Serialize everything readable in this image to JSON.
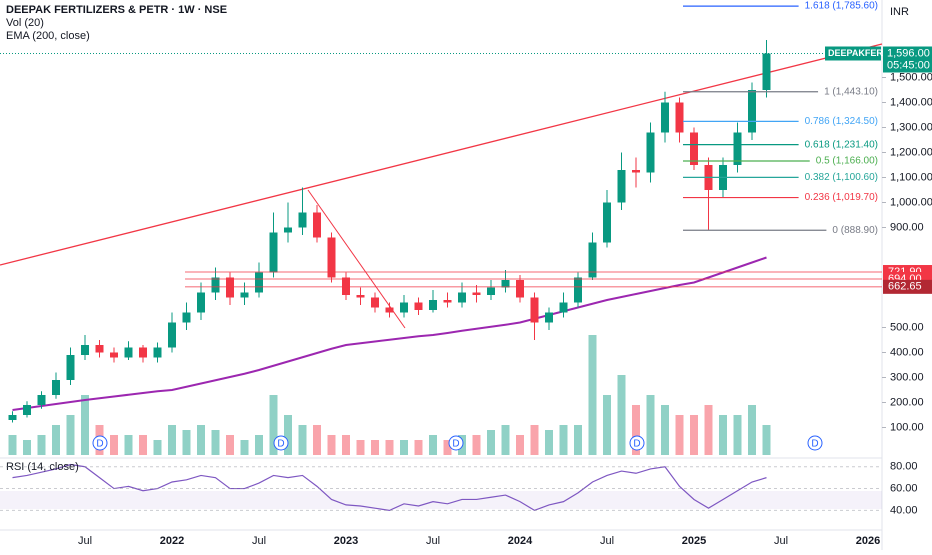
{
  "chart_data": {
    "type": "candlestick",
    "title": "DEEPAK FERTILIZERS & PETR · 1W · NSE",
    "indicators": [
      "Vol (20)",
      "EMA (200, close)"
    ],
    "rsi_title": "RSI (14, close)",
    "currency": "INR",
    "categories": [
      null,
      null,
      null,
      null,
      null,
      "Jul",
      null,
      null,
      null,
      null,
      null,
      "2022",
      null,
      null,
      null,
      null,
      null,
      "Jul",
      null,
      null,
      null,
      null,
      null,
      "2023",
      null,
      null,
      null,
      null,
      null,
      "Jul",
      null,
      null,
      null,
      null,
      null,
      "2024",
      null,
      null,
      null,
      null,
      null,
      "Jul",
      null,
      null,
      null,
      null,
      null,
      "2025",
      null,
      null,
      null,
      null,
      null,
      "Jul",
      null,
      null,
      null,
      null,
      null,
      "2026"
    ],
    "open": [
      130,
      150,
      190,
      230,
      290,
      390,
      430,
      400,
      380,
      420,
      380,
      420,
      520,
      560,
      640,
      700,
      620,
      640,
      720,
      880,
      900,
      960,
      860,
      700,
      630,
      620,
      580,
      560,
      600,
      570,
      610,
      600,
      640,
      630,
      660,
      690,
      620,
      520,
      560,
      600,
      700,
      840,
      1000,
      1130,
      1120,
      1280,
      1400,
      1280,
      1150,
      1050,
      1150,
      1280,
      1450,
      null,
      null,
      null,
      null,
      null,
      null,
      null
    ],
    "high": [
      165,
      205,
      245,
      320,
      420,
      470,
      450,
      420,
      445,
      430,
      440,
      560,
      600,
      680,
      740,
      720,
      680,
      760,
      960,
      1000,
      1060,
      990,
      880,
      720,
      660,
      640,
      600,
      630,
      620,
      650,
      640,
      680,
      670,
      690,
      730,
      710,
      640,
      580,
      640,
      720,
      880,
      1050,
      1200,
      1180,
      1320,
      1443,
      1420,
      1300,
      1180,
      1180,
      1320,
      1480,
      1650,
      null,
      null,
      null,
      null,
      null,
      null,
      null
    ],
    "low": [
      120,
      140,
      175,
      215,
      270,
      370,
      380,
      360,
      370,
      360,
      360,
      400,
      490,
      530,
      610,
      590,
      590,
      620,
      700,
      840,
      870,
      840,
      680,
      610,
      590,
      560,
      540,
      540,
      550,
      560,
      580,
      580,
      600,
      610,
      640,
      600,
      450,
      490,
      540,
      580,
      690,
      820,
      970,
      1060,
      1080,
      1240,
      1240,
      1130,
      889,
      1020,
      1120,
      1250,
      1420,
      null,
      null,
      null,
      null,
      null,
      null,
      null
    ],
    "close": [
      150,
      190,
      230,
      290,
      390,
      430,
      400,
      380,
      420,
      380,
      420,
      520,
      560,
      640,
      700,
      620,
      640,
      720,
      880,
      900,
      960,
      860,
      700,
      630,
      620,
      580,
      560,
      600,
      570,
      610,
      600,
      640,
      630,
      660,
      690,
      620,
      520,
      560,
      600,
      700,
      840,
      1000,
      1130,
      1120,
      1280,
      1400,
      1280,
      1150,
      1050,
      1150,
      1280,
      1450,
      1596,
      null,
      null,
      null,
      null,
      null,
      null,
      null
    ],
    "volume": [
      2,
      1.5,
      2,
      3,
      4,
      6,
      3,
      2,
      2,
      2,
      1.5,
      3,
      2.5,
      3,
      2.5,
      2,
      1.5,
      2,
      6,
      4,
      3,
      3,
      2,
      2,
      1.5,
      1.5,
      1.5,
      1.5,
      1.5,
      2,
      1.5,
      2,
      2,
      2.5,
      3,
      2,
      3,
      2.5,
      3,
      3,
      12,
      6,
      8,
      5,
      6,
      5,
      4,
      4,
      5,
      4,
      4,
      5,
      3,
      null,
      null,
      null,
      null,
      null,
      null,
      null
    ],
    "ema": [
      170,
      178,
      186,
      194,
      202,
      210,
      217,
      224,
      231,
      238,
      245,
      250,
      263,
      276,
      289,
      302,
      315,
      330,
      347,
      364,
      381,
      398,
      415,
      430,
      437,
      444,
      451,
      458,
      465,
      470,
      478,
      487,
      495,
      503,
      511,
      520,
      535,
      550,
      565,
      580,
      595,
      610,
      622,
      634,
      646,
      658,
      670,
      680,
      700,
      720,
      740,
      760,
      780,
      null,
      null,
      null,
      null,
      null,
      null,
      null
    ],
    "rsi": [
      70,
      72,
      75,
      78,
      82,
      80,
      70,
      60,
      62,
      58,
      60,
      66,
      68,
      72,
      70,
      60,
      60,
      65,
      72,
      70,
      72,
      62,
      50,
      45,
      44,
      42,
      40,
      46,
      44,
      48,
      46,
      50,
      50,
      52,
      54,
      48,
      40,
      45,
      48,
      56,
      66,
      72,
      76,
      74,
      78,
      80,
      62,
      50,
      42,
      50,
      58,
      66,
      70,
      null,
      null,
      null,
      null,
      null,
      null,
      null
    ],
    "ylim": [
      -30,
      1810
    ],
    "yticks": [
      {
        "value": 100,
        "label": "100.00"
      },
      {
        "value": 200,
        "label": "200.00"
      },
      {
        "value": 300,
        "label": "300.00"
      },
      {
        "value": 400,
        "label": "400.00"
      },
      {
        "value": 500,
        "label": "500.00"
      },
      {
        "value": 900,
        "label": "900.00"
      },
      {
        "value": 1000,
        "label": "1,000.00"
      },
      {
        "value": 1100,
        "label": "1,100.00"
      },
      {
        "value": 1200,
        "label": "1,200.00"
      },
      {
        "value": 1300,
        "label": "1,300.00"
      },
      {
        "value": 1400,
        "label": "1,400.00"
      },
      {
        "value": 1500,
        "label": "1,500.00"
      }
    ],
    "rsi_ylim": [
      22,
      88
    ],
    "rsi_yticks": [
      {
        "value": 40,
        "label": "40.00"
      },
      {
        "value": 60,
        "label": "60.00"
      },
      {
        "value": 80,
        "label": "80.00"
      }
    ],
    "fib": [
      {
        "value": 1785.6,
        "label": "1.618 (1,785.60)",
        "color": "#2962ff"
      },
      {
        "value": 1443.1,
        "label": "1 (1,443.10)",
        "color": "#787b86"
      },
      {
        "value": 1324.5,
        "label": "0.786 (1,324.50)",
        "color": "#42a5f5"
      },
      {
        "value": 1231.4,
        "label": "0.618 (1,231.40)",
        "color": "#089981"
      },
      {
        "value": 1166,
        "label": "0.5 (1,166.00)",
        "color": "#4caf50"
      },
      {
        "value": 1100.6,
        "label": "0.382 (1,100.60)",
        "color": "#26a69a"
      },
      {
        "value": 1019.7,
        "label": "0.236 (1,019.70)",
        "color": "#f23645"
      },
      {
        "value": 888.9,
        "label": "0 (888.90)",
        "color": "#787b86"
      }
    ],
    "levels": [
      {
        "value": 721.9,
        "label": "721.90"
      },
      {
        "value": 694,
        "label": "694.00"
      },
      {
        "value": 662.65,
        "label": "662.65"
      }
    ],
    "last_price": {
      "value": 1596,
      "label": "1,596.00"
    },
    "symbol": "DEEPAKFERT",
    "countdown": "05:45:00",
    "dividends": [
      "D",
      "D",
      "D",
      "D",
      "D"
    ],
    "colors": {
      "up": "#089981",
      "down": "#f23645",
      "ema": "#9c27b0",
      "rsi": "#7e57c2"
    }
  }
}
